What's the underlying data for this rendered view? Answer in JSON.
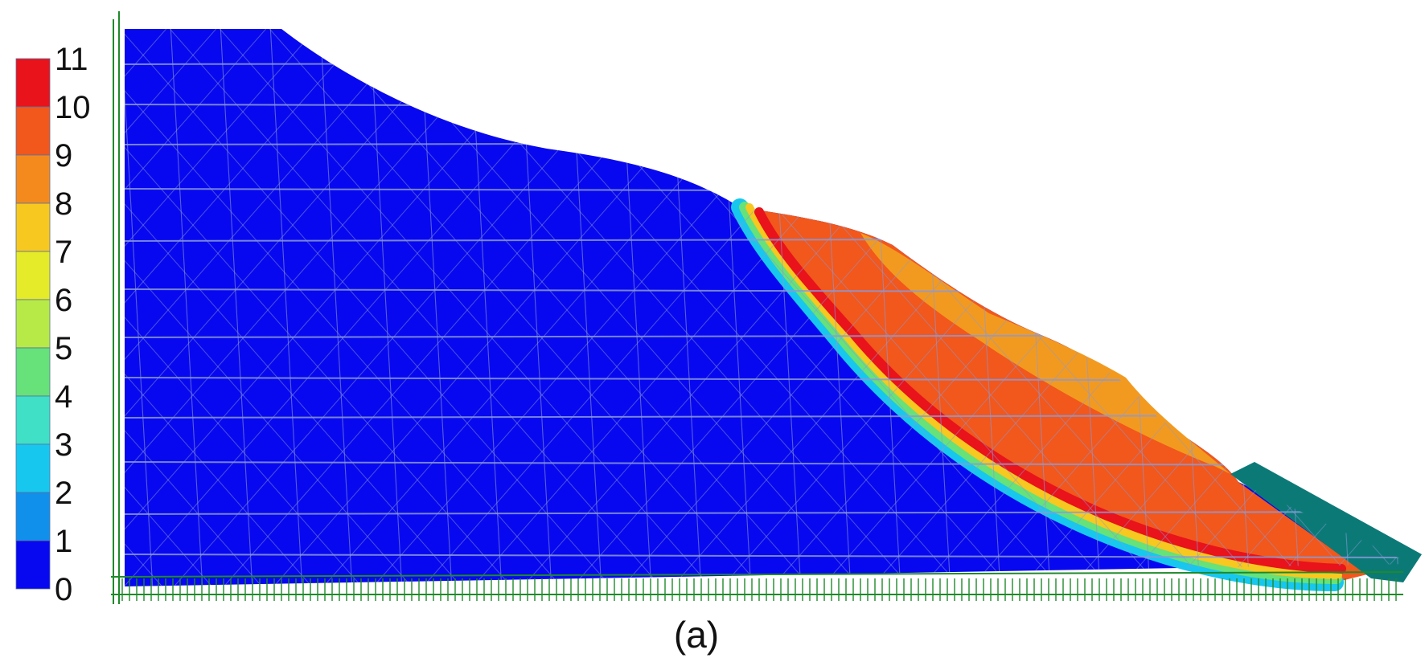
{
  "legend": {
    "labels": [
      "11",
      "10",
      "9",
      "8",
      "7",
      "6",
      "5",
      "4",
      "3",
      "2",
      "1",
      "0"
    ],
    "colors": [
      "#e8131b",
      "#f2571c",
      "#f48a1e",
      "#f7c81f",
      "#e5eb29",
      "#b7ea47",
      "#67e179",
      "#3fe0c6",
      "#17c7ee",
      "#1090ea",
      "#0a4ef2",
      "#0808f0"
    ]
  },
  "colors": {
    "stable_zone": "#0808f0",
    "sliding_mass": "#f2571c",
    "upper_layer": "#f29a20",
    "slip_band": "#e8131b",
    "toe_block": "#0b7a77",
    "mesh_lines": "#8a9ad8",
    "boundary_lines": "#1f8a2a"
  },
  "caption": "(a)"
}
